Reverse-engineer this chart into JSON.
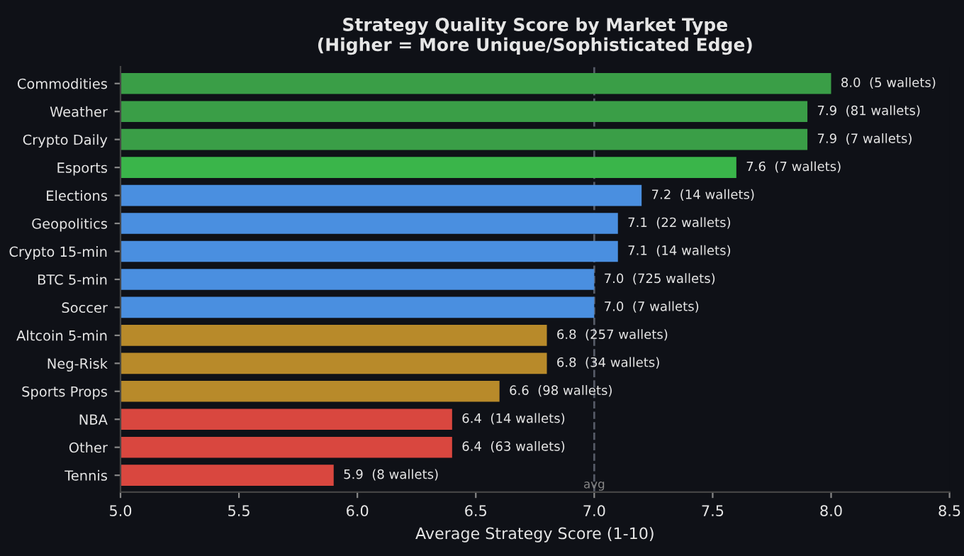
{
  "chart_data": {
    "type": "bar",
    "orientation": "horizontal",
    "title": "Strategy Quality Score by Market Type\n(Higher = More Unique/Sophisticated Edge)",
    "xlabel": "Average Strategy Score (1-10)",
    "categories": [
      "Commodities",
      "Weather",
      "Crypto Daily",
      "Esports",
      "Elections",
      "Geopolitics",
      "Crypto 15-min",
      "BTC 5-min",
      "Soccer",
      "Altcoin 5-min",
      "Neg-Risk",
      "Sports Props",
      "NBA",
      "Other",
      "Tennis"
    ],
    "values": [
      8.0,
      7.9,
      7.9,
      7.6,
      7.2,
      7.1,
      7.1,
      7.0,
      7.0,
      6.8,
      6.8,
      6.6,
      6.4,
      6.4,
      5.9
    ],
    "colors": [
      "#3a9e47",
      "#3a9e47",
      "#3a9e47",
      "#3ab54a",
      "#4a8fe0",
      "#4a8fe0",
      "#4a8fe0",
      "#4a8fe0",
      "#4a8fe0",
      "#b88a2a",
      "#b88a2a",
      "#b88a2a",
      "#d9473f",
      "#d9473f",
      "#d9473f"
    ],
    "value_labels": [
      "8.0  (5 wallets)",
      "7.9  (81 wallets)",
      "7.9  (7 wallets)",
      "7.6  (7 wallets)",
      "7.2  (14 wallets)",
      "7.1  (22 wallets)",
      "7.1  (14 wallets)",
      "7.0  (725 wallets)",
      "7.0  (7 wallets)",
      "6.8  (257 wallets)",
      "6.8  (34 wallets)",
      "6.6  (98 wallets)",
      "6.4  (14 wallets)",
      "6.4  (63 wallets)",
      "5.9  (8 wallets)"
    ],
    "xlim": [
      5.0,
      8.5
    ],
    "xticks": [
      {
        "value": 5.0,
        "label": "5.0"
      },
      {
        "value": 5.5,
        "label": "5.5"
      },
      {
        "value": 6.0,
        "label": "6.0"
      },
      {
        "value": 6.5,
        "label": "6.5"
      },
      {
        "value": 7.0,
        "label": "7.0"
      },
      {
        "value": 7.5,
        "label": "7.5"
      },
      {
        "value": 8.0,
        "label": "8.0"
      },
      {
        "value": 8.5,
        "label": "8.5"
      }
    ],
    "ref_lines": [
      {
        "axis": "x",
        "value": 7.0,
        "label": "avg",
        "color": "#555a66",
        "line_style": "dashed"
      }
    ],
    "grid": false,
    "legend": false
  }
}
